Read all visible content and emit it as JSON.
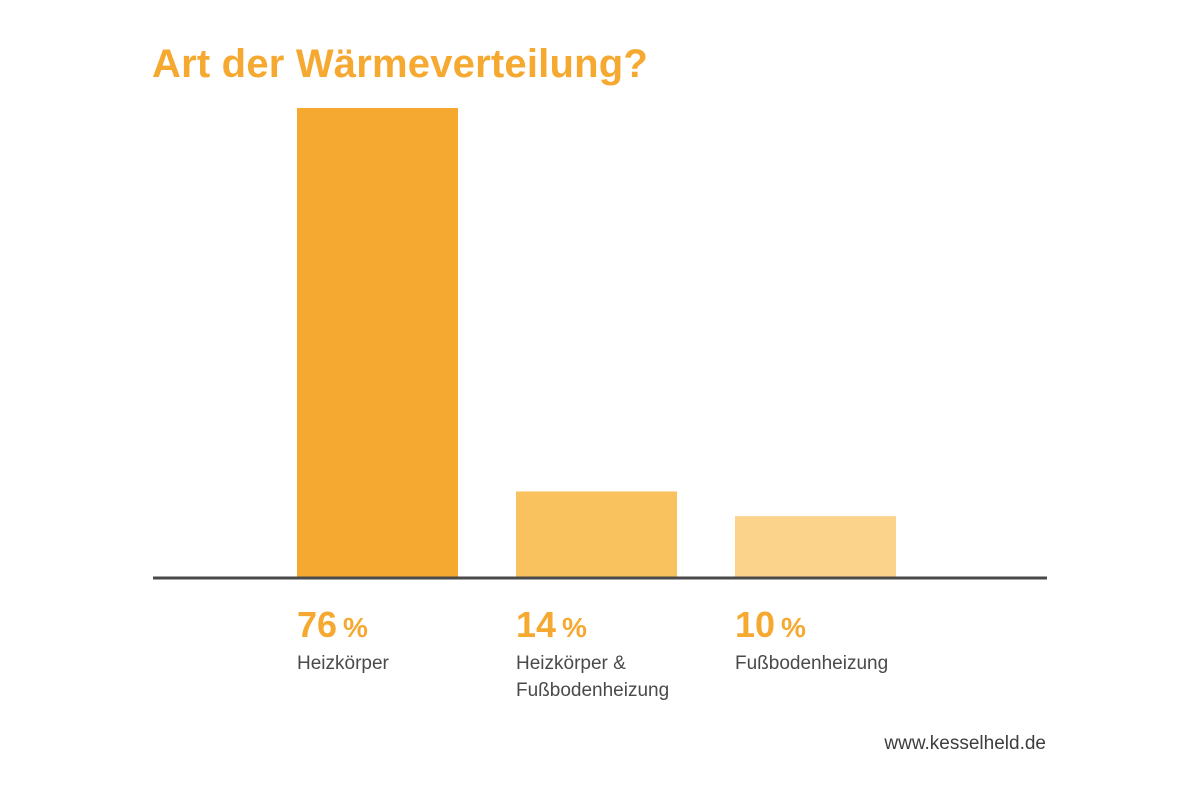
{
  "chart_data": {
    "type": "bar",
    "title": "Art der Wärmeverteilung?",
    "categories": [
      "Heizkörper",
      "Heizkörper & Fußbodenheizung",
      "Fußbodenheizung"
    ],
    "category_lines": [
      [
        "Heizkörper"
      ],
      [
        "Heizkörper &",
        "Fußbodenheizung"
      ],
      [
        "Fußbodenheizung"
      ]
    ],
    "values": [
      76,
      14,
      10
    ],
    "value_labels": [
      "76",
      "14",
      "10"
    ],
    "unit": "%",
    "colors": [
      "#f6a931",
      "#f9c25e",
      "#fbd38a"
    ],
    "axis_color": "#4a4a4a",
    "ylim": [
      0,
      76
    ],
    "grid": false,
    "legend": "none"
  },
  "footer": {
    "source": "www.kesselheld.de"
  }
}
